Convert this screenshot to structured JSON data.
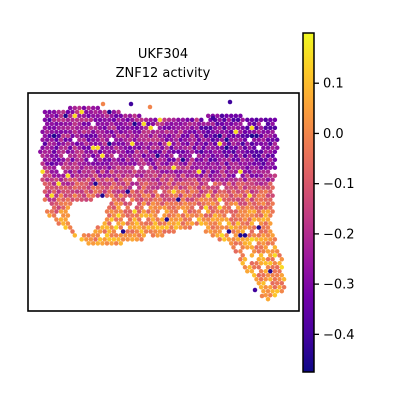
{
  "chart_data": {
    "type": "heatmap",
    "title": "UKF304",
    "subtitle": "ZNF12 activity",
    "xlabel": "",
    "ylabel": "",
    "grid": false,
    "colormap": "plasma",
    "colorbar": {
      "position": "right",
      "vmin": -0.475,
      "vmax": 0.2,
      "ticks": [
        0.1,
        0.0,
        -0.1,
        -0.2,
        -0.3,
        -0.4
      ],
      "tick_labels": [
        "0.1",
        "0.0",
        "−0.1",
        "−0.2",
        "−0.3",
        "−0.4"
      ]
    },
    "description_values": {
      "upper_region_typical": -0.25,
      "lower_region_typical": 0.05,
      "scattered_outliers": [
        -0.45,
        0.15
      ]
    }
  },
  "colors": {
    "plasma": [
      "#0d0887",
      "#46039f",
      "#7201a8",
      "#9c179e",
      "#bd3786",
      "#d8576b",
      "#ed7953",
      "#fb9f3a",
      "#fdca26",
      "#f0f921"
    ]
  }
}
